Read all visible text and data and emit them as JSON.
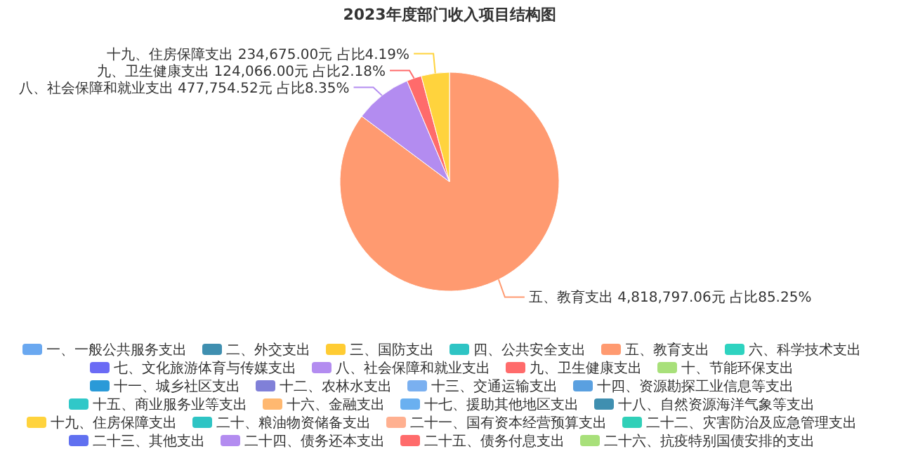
{
  "chart_data": {
    "type": "pie",
    "title": "2023年度部门收入项目结构图",
    "categories": [
      "一、一般公共服务支出",
      "二、外交支出",
      "三、国防支出",
      "四、公共安全支出",
      "五、教育支出",
      "六、科学技术支出",
      "七、文化旅游体育与传媒支出",
      "八、社会保障和就业支出",
      "九、卫生健康支出",
      "十、节能环保支出",
      "十一、城乡社区支出",
      "十二、农林水支出",
      "十三、交通运输支出",
      "十四、资源勘探工业信息等支出",
      "十五、商业服务业等支出",
      "十六、金融支出",
      "十七、援助其他地区支出",
      "十八、自然资源海洋气象等支出",
      "十九、住房保障支出",
      "二十、粮油物资储备支出",
      "二十一、国有资本经营预算支出",
      "二十二、灾害防治及应急管理支出",
      "二十三、其他支出",
      "二十四、债务还本支出",
      "二十五、债务付息支出",
      "二十六、抗疫特别国债安排的支出"
    ],
    "values": [
      null,
      null,
      null,
      null,
      4818797.06,
      null,
      null,
      477754.52,
      124066.0,
      null,
      null,
      null,
      null,
      null,
      null,
      null,
      null,
      null,
      234675.0,
      null,
      null,
      null,
      null,
      null,
      null,
      null
    ],
    "value_labels": [
      null,
      null,
      null,
      null,
      "五、教育支出 4,818,797.06元 占比85.25%",
      null,
      null,
      "八、社会保障和就业支出 477,754.52元 占比8.35%",
      "九、卫生健康支出 124,066.00元 占比2.18%",
      null,
      null,
      null,
      null,
      null,
      null,
      null,
      null,
      null,
      "十九、住房保障支出 234,675.00元 占比4.19%",
      null,
      null,
      null,
      null,
      null,
      null,
      null
    ],
    "colors": [
      "#6aa8f0",
      "#3f8fb0",
      "#ffcc33",
      "#2ec4c4",
      "#ff9a70",
      "#2ed3c0",
      "#6b6bf5",
      "#b38cf0",
      "#ff6b6b",
      "#a8e07a",
      "#2a9ad8",
      "#8080d8",
      "#7ab0f0",
      "#5aa0e0",
      "#30c8c8",
      "#ffb870",
      "#6ab0f0",
      "#3f8fb0",
      "#ffd33d",
      "#2ec4c4",
      "#ffb090",
      "#30d0b8",
      "#6070f0",
      "#b38cf0",
      "#ff6b6b",
      "#a8e07a"
    ],
    "legend": "bottom"
  }
}
